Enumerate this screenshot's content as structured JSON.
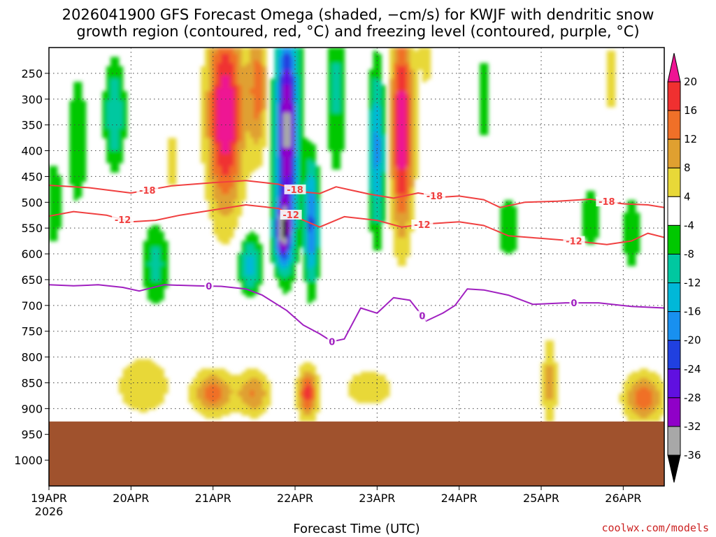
{
  "chart_data": {
    "type": "heatmap",
    "title_line1": "2026041900 GFS Forecast Omega (shaded, −cm/s) for KWJF with dendritic snow",
    "title_line2": "growth region (contoured, red, °C) and freezing level (contoured, purple, °C)",
    "xlabel": "Forecast Time (UTC)",
    "credit": "coolwx.com/models",
    "x_axis": {
      "unit": "days since 19APR 00Z",
      "range": [
        0,
        7.5
      ],
      "ticks": [
        {
          "value": 0,
          "label": "19APR",
          "sublabel": "2026"
        },
        {
          "value": 1,
          "label": "20APR"
        },
        {
          "value": 2,
          "label": "21APR"
        },
        {
          "value": 3,
          "label": "22APR"
        },
        {
          "value": 4,
          "label": "23APR"
        },
        {
          "value": 5,
          "label": "24APR"
        },
        {
          "value": 6,
          "label": "25APR"
        },
        {
          "value": 7,
          "label": "26APR"
        }
      ]
    },
    "y_axis": {
      "unit": "hPa",
      "range": [
        200,
        1050
      ],
      "ticks": [
        "250",
        "300",
        "350",
        "400",
        "450",
        "500",
        "550",
        "600",
        "650",
        "700",
        "750",
        "800",
        "850",
        "900",
        "950",
        "1000"
      ]
    },
    "ground_level_hPa": 925,
    "colorbar": {
      "labels": [
        "20",
        "16",
        "12",
        "8",
        "4",
        "-4",
        "-8",
        "-12",
        "-16",
        "-20",
        "-24",
        "-28",
        "-32",
        "-36"
      ],
      "colors": [
        "#ee1493",
        "#f03030",
        "#f07028",
        "#e0a030",
        "#e8d838",
        "#ffffff",
        "#00c800",
        "#00c8a0",
        "#00b8d8",
        "#1890f0",
        "#2040e0",
        "#6010e0",
        "#9000c8",
        "#a8a8a8",
        "#000000"
      ]
    },
    "omega_features": [
      {
        "x": 0.05,
        "p": 500,
        "wx": 0.12,
        "wp": 90,
        "v": -8
      },
      {
        "x": 0.35,
        "p": 380,
        "wx": 0.12,
        "wp": 140,
        "v": -8
      },
      {
        "x": 0.8,
        "p": 330,
        "wx": 0.13,
        "wp": 110,
        "v": -12
      },
      {
        "x": 1.3,
        "p": 620,
        "wx": 0.16,
        "wp": 80,
        "v": -10
      },
      {
        "x": 1.5,
        "p": 420,
        "wx": 0.08,
        "wp": 80,
        "v": 6
      },
      {
        "x": 2.15,
        "p": 330,
        "wx": 0.22,
        "wp": 190,
        "v": 24
      },
      {
        "x": 2.55,
        "p": 280,
        "wx": 0.12,
        "wp": 130,
        "v": 14
      },
      {
        "x": 2.9,
        "p": 360,
        "wx": 0.14,
        "wp": 210,
        "v": -34
      },
      {
        "x": 2.85,
        "p": 560,
        "wx": 0.1,
        "wp": 60,
        "v": -26
      },
      {
        "x": 2.45,
        "p": 620,
        "wx": 0.14,
        "wp": 60,
        "v": -14
      },
      {
        "x": 3.2,
        "p": 540,
        "wx": 0.08,
        "wp": 120,
        "v": -22
      },
      {
        "x": 3.5,
        "p": 280,
        "wx": 0.12,
        "wp": 180,
        "v": -9
      },
      {
        "x": 4.0,
        "p": 400,
        "wx": 0.1,
        "wp": 160,
        "v": -18
      },
      {
        "x": 4.3,
        "p": 360,
        "wx": 0.14,
        "wp": 200,
        "v": 24
      },
      {
        "x": 4.6,
        "p": 180,
        "wx": 0.1,
        "wp": 130,
        "v": 6
      },
      {
        "x": 5.3,
        "p": 300,
        "wx": 0.1,
        "wp": 100,
        "v": -7
      },
      {
        "x": 5.6,
        "p": 550,
        "wx": 0.16,
        "wp": 70,
        "v": -7
      },
      {
        "x": 6.1,
        "p": 850,
        "wx": 0.09,
        "wp": 90,
        "v": 10
      },
      {
        "x": 6.6,
        "p": 530,
        "wx": 0.14,
        "wp": 70,
        "v": -7
      },
      {
        "x": 6.85,
        "p": 260,
        "wx": 0.1,
        "wp": 90,
        "v": 6
      },
      {
        "x": 7.1,
        "p": 560,
        "wx": 0.12,
        "wp": 90,
        "v": -7
      },
      {
        "x": 7.25,
        "p": 880,
        "wx": 0.25,
        "wp": 50,
        "v": 14
      },
      {
        "x": 2.0,
        "p": 870,
        "wx": 0.25,
        "wp": 45,
        "v": 14
      },
      {
        "x": 2.5,
        "p": 870,
        "wx": 0.2,
        "wp": 45,
        "v": 12
      },
      {
        "x": 3.15,
        "p": 870,
        "wx": 0.12,
        "wp": 50,
        "v": 18
      },
      {
        "x": 1.15,
        "p": 855,
        "wx": 0.35,
        "wp": 60,
        "v": 8
      },
      {
        "x": 3.9,
        "p": 860,
        "wx": 0.4,
        "wp": 50,
        "v": 6
      }
    ],
    "contours": [
      {
        "label": "-18",
        "color": "#f04040",
        "points": [
          [
            0,
            467
          ],
          [
            0.5,
            472
          ],
          [
            1.0,
            482
          ],
          [
            1.5,
            468
          ],
          [
            2.0,
            462
          ],
          [
            2.4,
            458
          ],
          [
            2.8,
            465
          ],
          [
            3.1,
            480
          ],
          [
            3.3,
            483
          ],
          [
            3.5,
            470
          ],
          [
            3.9,
            484
          ],
          [
            4.2,
            492
          ],
          [
            4.5,
            482
          ],
          [
            4.8,
            490
          ],
          [
            5.0,
            488
          ],
          [
            5.3,
            495
          ],
          [
            5.5,
            510
          ],
          [
            5.8,
            500
          ],
          [
            6.2,
            498
          ],
          [
            6.6,
            494
          ],
          [
            7.0,
            503
          ],
          [
            7.3,
            505
          ],
          [
            7.5,
            510
          ]
        ],
        "label_x": [
          1.2,
          3.0,
          4.7,
          6.8
        ]
      },
      {
        "label": "-12",
        "color": "#f04040",
        "points": [
          [
            0,
            527
          ],
          [
            0.3,
            518
          ],
          [
            0.7,
            525
          ],
          [
            1.0,
            538
          ],
          [
            1.3,
            535
          ],
          [
            1.6,
            525
          ],
          [
            2.0,
            515
          ],
          [
            2.4,
            505
          ],
          [
            2.8,
            512
          ],
          [
            3.0,
            528
          ],
          [
            3.3,
            548
          ],
          [
            3.6,
            528
          ],
          [
            4.0,
            535
          ],
          [
            4.3,
            548
          ],
          [
            4.6,
            542
          ],
          [
            5.0,
            538
          ],
          [
            5.3,
            545
          ],
          [
            5.6,
            565
          ],
          [
            6.0,
            570
          ],
          [
            6.4,
            575
          ],
          [
            6.8,
            582
          ],
          [
            7.1,
            575
          ],
          [
            7.3,
            560
          ],
          [
            7.5,
            568
          ]
        ],
        "label_x": [
          0.9,
          2.95,
          4.55,
          6.4
        ]
      },
      {
        "label": "0",
        "color": "#a020c0",
        "points": [
          [
            0,
            660
          ],
          [
            0.3,
            662
          ],
          [
            0.6,
            660
          ],
          [
            0.9,
            665
          ],
          [
            1.1,
            672
          ],
          [
            1.4,
            660
          ],
          [
            1.8,
            662
          ],
          [
            2.1,
            663
          ],
          [
            2.4,
            668
          ],
          [
            2.6,
            680
          ],
          [
            2.9,
            710
          ],
          [
            3.1,
            738
          ],
          [
            3.3,
            755
          ],
          [
            3.45,
            770
          ],
          [
            3.6,
            765
          ],
          [
            3.8,
            705
          ],
          [
            4.0,
            715
          ],
          [
            4.2,
            685
          ],
          [
            4.4,
            690
          ],
          [
            4.6,
            730
          ],
          [
            4.8,
            715
          ],
          [
            4.95,
            700
          ],
          [
            5.1,
            668
          ],
          [
            5.3,
            670
          ],
          [
            5.6,
            680
          ],
          [
            5.9,
            698
          ],
          [
            6.3,
            695
          ],
          [
            6.7,
            695
          ],
          [
            7.1,
            702
          ],
          [
            7.5,
            705
          ]
        ],
        "label_x": [
          1.95,
          3.45,
          4.55,
          6.4
        ]
      }
    ]
  }
}
